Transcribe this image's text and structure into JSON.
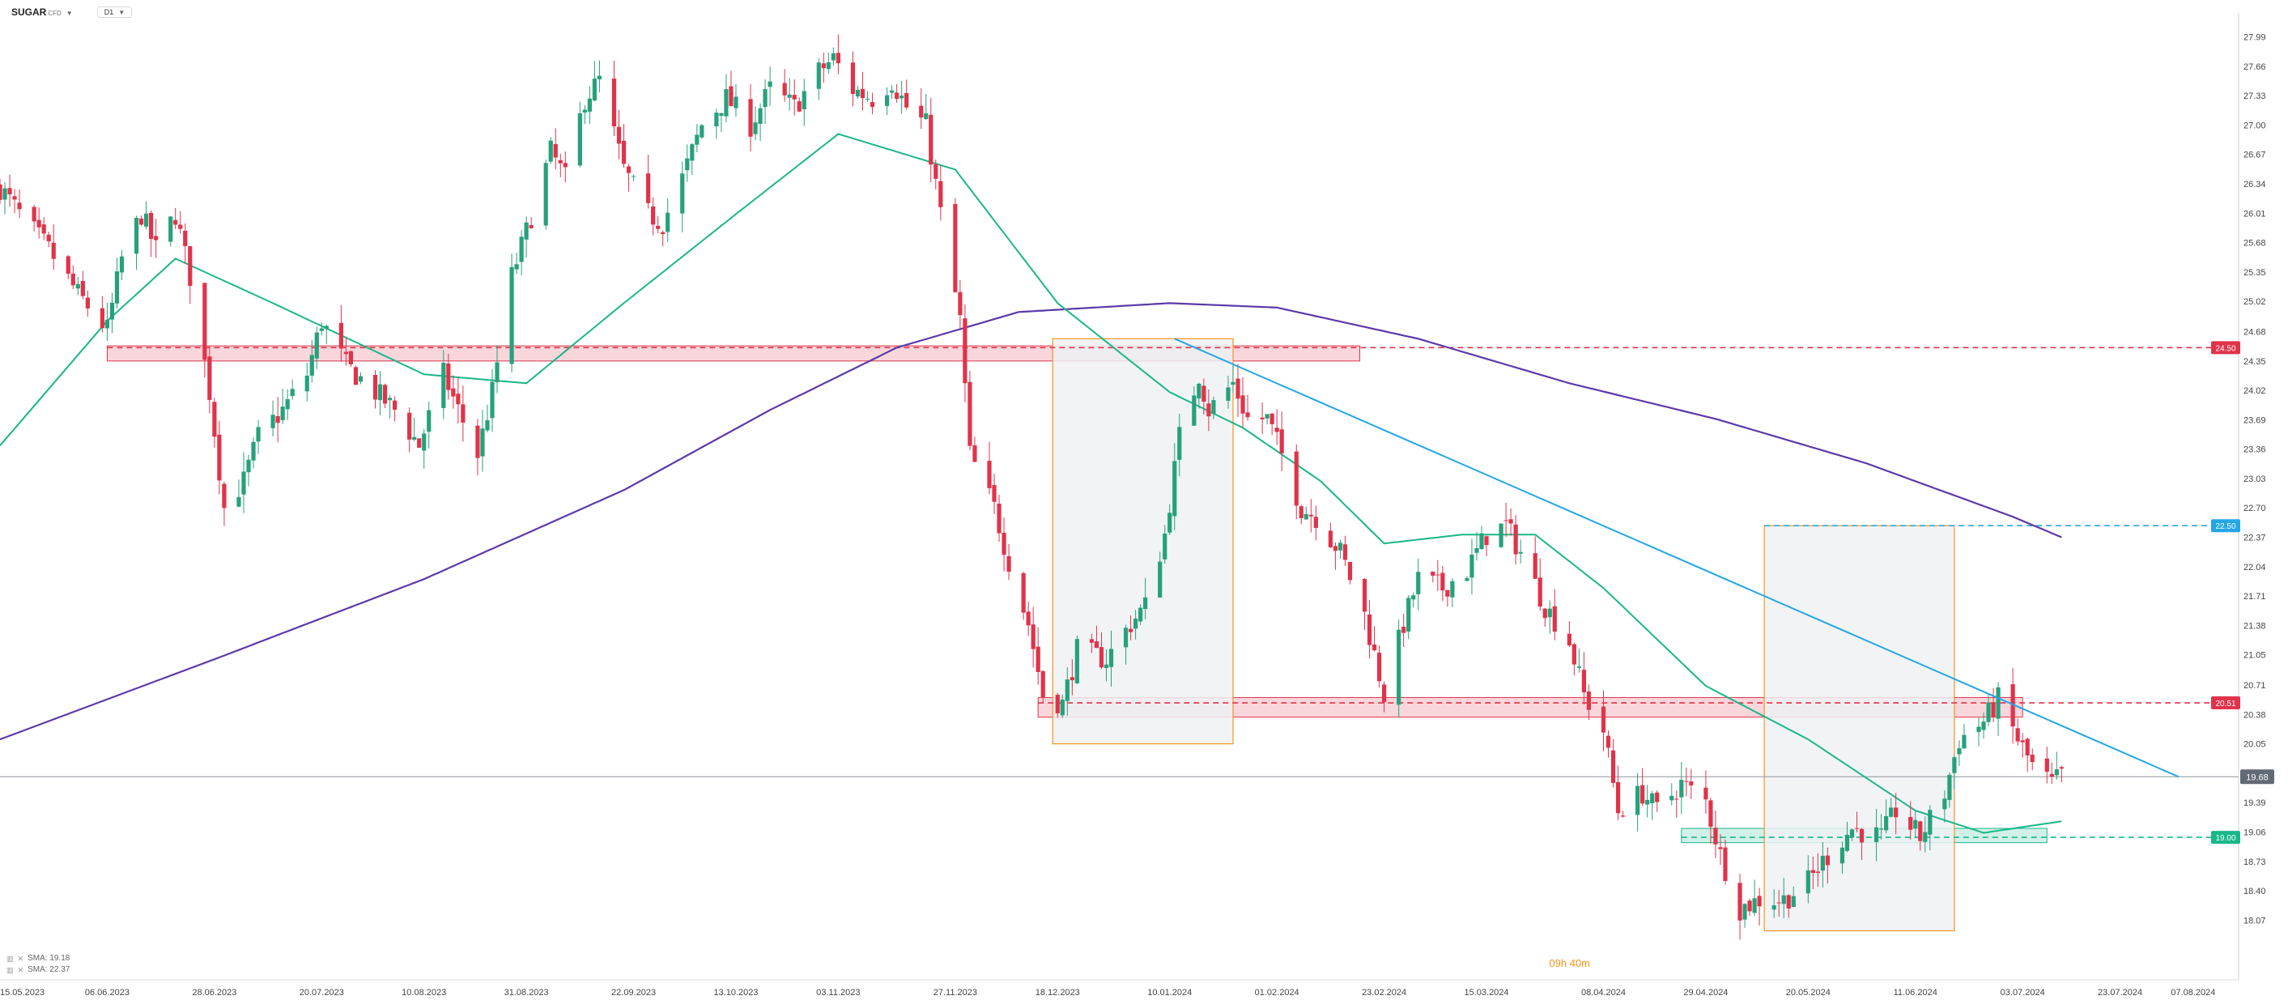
{
  "header": {
    "symbol": "SUGAR",
    "symbol_sub": "CFD",
    "timeframe": "D1"
  },
  "legend": [
    {
      "label": "SMA: 19.18"
    },
    {
      "label": "SMA: 22.37"
    }
  ],
  "countdown": "09h 40m",
  "colors": {
    "up": "#26a17b",
    "down": "#e0334a",
    "sma_short": "#19b78a",
    "sma_long": "#5b3aa8",
    "trendline": "#23a6e6",
    "resistance": "#e0334a",
    "support": "#19b78a",
    "shade_box_fill": "#eef1f3",
    "shade_box_border": "#f7941d"
  },
  "chart_data": {
    "type": "candlestick",
    "timeframe": "D1",
    "y_range": [
      17.6,
      28.15
    ],
    "y_ticks": [
      "27.99",
      "27.66",
      "27.33",
      "27.00",
      "26.67",
      "26.34",
      "26.01",
      "25.68",
      "25.35",
      "25.02",
      "24.68",
      "24.35",
      "24.02",
      "23.69",
      "23.36",
      "23.03",
      "22.70",
      "22.37",
      "22.04",
      "21.71",
      "21.38",
      "21.05",
      "20.71",
      "20.38",
      "20.05",
      "19.39",
      "19.06",
      "18.73",
      "18.40",
      "18.07"
    ],
    "x_range": [
      "2023-05-15",
      "2024-08-13"
    ],
    "x_ticks": [
      "15.05.2023",
      "06.06.2023",
      "28.06.2023",
      "20.07.2023",
      "10.08.2023",
      "31.08.2023",
      "22.09.2023",
      "13.10.2023",
      "03.11.2023",
      "27.11.2023",
      "18.12.2023",
      "10.01.2024",
      "01.02.2024",
      "23.02.2024",
      "15.03.2024",
      "08.04.2024",
      "29.04.2024",
      "20.05.2024",
      "11.06.2024",
      "03.07.2024",
      "23.07.2024",
      "07.08.2024"
    ],
    "last_price": "19.68",
    "price_waypoints": [
      [
        "2023-05-15",
        26.3
      ],
      [
        "2023-05-19",
        26.0
      ],
      [
        "2023-05-25",
        25.6
      ],
      [
        "2023-05-31",
        25.1
      ],
      [
        "2023-06-06",
        24.7
      ],
      [
        "2023-06-09",
        25.5
      ],
      [
        "2023-06-13",
        26.0
      ],
      [
        "2023-06-16",
        25.6
      ],
      [
        "2023-06-20",
        26.0
      ],
      [
        "2023-06-23",
        25.3
      ],
      [
        "2023-06-27",
        24.0
      ],
      [
        "2023-06-30",
        22.7
      ],
      [
        "2023-07-04",
        23.0
      ],
      [
        "2023-07-07",
        23.5
      ],
      [
        "2023-07-12",
        23.8
      ],
      [
        "2023-07-17",
        24.2
      ],
      [
        "2023-07-20",
        24.8
      ],
      [
        "2023-07-25",
        24.3
      ],
      [
        "2023-07-31",
        24.0
      ],
      [
        "2023-08-04",
        23.8
      ],
      [
        "2023-08-09",
        23.4
      ],
      [
        "2023-08-14",
        24.2
      ],
      [
        "2023-08-17",
        23.8
      ],
      [
        "2023-08-21",
        23.3
      ],
      [
        "2023-08-24",
        24.0
      ],
      [
        "2023-08-28",
        25.3
      ],
      [
        "2023-08-31",
        25.8
      ],
      [
        "2023-09-05",
        26.7
      ],
      [
        "2023-09-08",
        26.4
      ],
      [
        "2023-09-12",
        27.3
      ],
      [
        "2023-09-15",
        27.5
      ],
      [
        "2023-09-20",
        26.5
      ],
      [
        "2023-09-25",
        26.0
      ],
      [
        "2023-09-28",
        25.9
      ],
      [
        "2023-10-02",
        26.4
      ],
      [
        "2023-10-06",
        27.0
      ],
      [
        "2023-10-11",
        27.3
      ],
      [
        "2023-10-16",
        27.0
      ],
      [
        "2023-10-20",
        27.4
      ],
      [
        "2023-10-25",
        27.2
      ],
      [
        "2023-10-30",
        27.6
      ],
      [
        "2023-11-02",
        27.75
      ],
      [
        "2023-11-06",
        27.4
      ],
      [
        "2023-11-10",
        27.3
      ],
      [
        "2023-11-14",
        27.5
      ],
      [
        "2023-11-17",
        27.2
      ],
      [
        "2023-11-21",
        27.0
      ],
      [
        "2023-11-24",
        26.0
      ],
      [
        "2023-11-28",
        24.8
      ],
      [
        "2023-11-30",
        23.3
      ],
      [
        "2023-12-05",
        22.7
      ],
      [
        "2023-12-08",
        22.1
      ],
      [
        "2023-12-12",
        21.4
      ],
      [
        "2023-12-15",
        20.6
      ],
      [
        "2023-12-19",
        20.5
      ],
      [
        "2023-12-22",
        21.1
      ],
      [
        "2023-12-28",
        21.0
      ],
      [
        "2024-01-02",
        21.4
      ],
      [
        "2024-01-05",
        21.6
      ],
      [
        "2024-01-09",
        22.4
      ],
      [
        "2024-01-12",
        23.5
      ],
      [
        "2024-01-16",
        24.2
      ],
      [
        "2024-01-18",
        23.8
      ],
      [
        "2024-01-23",
        24.1
      ],
      [
        "2024-01-26",
        23.7
      ],
      [
        "2024-01-30",
        23.7
      ],
      [
        "2024-02-02",
        23.3
      ],
      [
        "2024-02-06",
        22.7
      ],
      [
        "2024-02-09",
        22.6
      ],
      [
        "2024-02-14",
        22.2
      ],
      [
        "2024-02-19",
        21.5
      ],
      [
        "2024-02-23",
        20.6
      ],
      [
        "2024-02-27",
        21.4
      ],
      [
        "2024-03-01",
        21.9
      ],
      [
        "2024-03-06",
        21.8
      ],
      [
        "2024-03-11",
        22.0
      ],
      [
        "2024-03-15",
        22.4
      ],
      [
        "2024-03-19",
        22.5
      ],
      [
        "2024-03-22",
        22.2
      ],
      [
        "2024-03-27",
        21.6
      ],
      [
        "2024-04-01",
        21.2
      ],
      [
        "2024-04-04",
        20.6
      ],
      [
        "2024-04-08",
        20.2
      ],
      [
        "2024-04-11",
        19.3
      ],
      [
        "2024-04-16",
        19.5
      ],
      [
        "2024-04-19",
        19.3
      ],
      [
        "2024-04-24",
        19.6
      ],
      [
        "2024-04-29",
        19.4
      ],
      [
        "2024-05-02",
        18.8
      ],
      [
        "2024-05-06",
        18.2
      ],
      [
        "2024-05-10",
        18.3
      ],
      [
        "2024-05-15",
        18.3
      ],
      [
        "2024-05-20",
        18.5
      ],
      [
        "2024-05-24",
        18.8
      ],
      [
        "2024-05-29",
        19.1
      ],
      [
        "2024-06-04",
        19.0
      ],
      [
        "2024-06-07",
        19.3
      ],
      [
        "2024-06-12",
        19.0
      ],
      [
        "2024-06-17",
        19.5
      ],
      [
        "2024-06-20",
        20.1
      ],
      [
        "2024-06-25",
        20.3
      ],
      [
        "2024-06-28",
        20.55
      ],
      [
        "2024-07-02",
        20.1
      ],
      [
        "2024-07-05",
        19.8
      ],
      [
        "2024-07-09",
        19.6
      ],
      [
        "2024-07-11",
        19.7
      ]
    ],
    "sma_short": {
      "name": "SMA",
      "value_label": "SMA: 19.18",
      "points": [
        [
          "2023-05-15",
          23.4
        ],
        [
          "2023-06-06",
          24.8
        ],
        [
          "2023-06-20",
          25.5
        ],
        [
          "2023-07-10",
          25.0
        ],
        [
          "2023-08-10",
          24.2
        ],
        [
          "2023-08-31",
          24.1
        ],
        [
          "2023-09-20",
          25.0
        ],
        [
          "2023-10-13",
          26.0
        ],
        [
          "2023-11-03",
          26.9
        ],
        [
          "2023-11-27",
          26.5
        ],
        [
          "2023-12-18",
          25.0
        ],
        [
          "2024-01-10",
          24.0
        ],
        [
          "2024-01-25",
          23.6
        ],
        [
          "2024-02-10",
          23.0
        ],
        [
          "2024-02-23",
          22.3
        ],
        [
          "2024-03-10",
          22.4
        ],
        [
          "2024-03-25",
          22.4
        ],
        [
          "2024-04-08",
          21.8
        ],
        [
          "2024-04-29",
          20.7
        ],
        [
          "2024-05-20",
          20.1
        ],
        [
          "2024-06-11",
          19.3
        ],
        [
          "2024-06-25",
          19.05
        ],
        [
          "2024-07-11",
          19.18
        ]
      ]
    },
    "sma_long": {
      "name": "SMA",
      "value_label": "SMA: 22.37",
      "points": [
        [
          "2023-05-15",
          20.1
        ],
        [
          "2023-06-28",
          21.0
        ],
        [
          "2023-08-10",
          21.9
        ],
        [
          "2023-09-20",
          22.9
        ],
        [
          "2023-10-20",
          23.8
        ],
        [
          "2023-11-15",
          24.5
        ],
        [
          "2023-12-10",
          24.9
        ],
        [
          "2024-01-10",
          25.0
        ],
        [
          "2024-02-01",
          24.95
        ],
        [
          "2024-03-01",
          24.6
        ],
        [
          "2024-04-01",
          24.1
        ],
        [
          "2024-05-01",
          23.7
        ],
        [
          "2024-06-01",
          23.2
        ],
        [
          "2024-07-01",
          22.6
        ],
        [
          "2024-07-11",
          22.37
        ]
      ]
    },
    "levels": [
      {
        "value": 24.5,
        "label": "24.50",
        "color": "#e0334a",
        "zone_from": "2023-06-06",
        "zone_to": "2024-02-18",
        "zone_low": 24.35,
        "zone_high": 24.52
      },
      {
        "value": 22.5,
        "label": "22.50",
        "color": "#23a6e6"
      },
      {
        "value": 20.51,
        "label": "20.51",
        "color": "#e0334a",
        "zone_from": "2023-12-14",
        "zone_to": "2024-07-03",
        "zone_low": 20.35,
        "zone_high": 20.57
      },
      {
        "value": 19.0,
        "label": "19.00",
        "color": "#19b78a",
        "zone_from": "2024-04-24",
        "zone_to": "2024-07-08",
        "zone_low": 18.94,
        "zone_high": 19.1
      }
    ],
    "trendline": [
      [
        "2024-01-11",
        24.6
      ],
      [
        "2024-08-04",
        19.68
      ]
    ],
    "shaded_boxes": [
      {
        "from": "2023-12-17",
        "to": "2024-01-23",
        "low": 20.05,
        "high": 24.6
      },
      {
        "from": "2024-05-11",
        "to": "2024-06-19",
        "low": 17.95,
        "high": 22.5
      }
    ],
    "grid": false,
    "axis_position": "right"
  }
}
